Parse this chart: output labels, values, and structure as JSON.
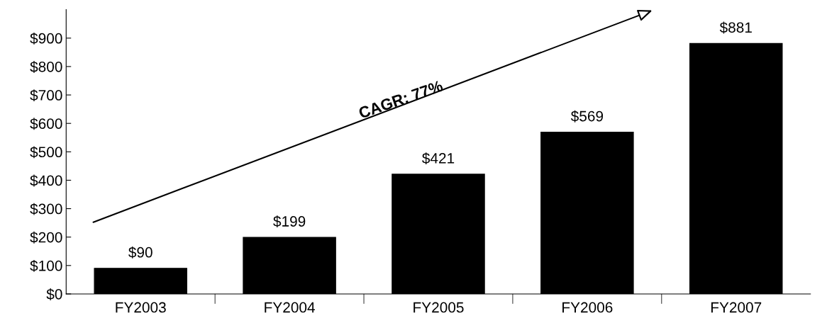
{
  "chart_data": {
    "type": "bar",
    "categories": [
      "FY2003",
      "FY2004",
      "FY2005",
      "FY2006",
      "FY2007"
    ],
    "values": [
      90,
      199,
      421,
      569,
      881
    ],
    "color": "#000000",
    "value_labels": [
      "$90",
      "$199",
      "$421",
      "$569",
      "$881"
    ],
    "ylim": [
      0,
      1000
    ],
    "yticks": [
      {
        "value": 0,
        "label": "$0"
      },
      {
        "value": 100,
        "label": "$100"
      },
      {
        "value": 200,
        "label": "$200"
      },
      {
        "value": 300,
        "label": "$300"
      },
      {
        "value": 400,
        "label": "$400"
      },
      {
        "value": 500,
        "label": "$500"
      },
      {
        "value": 600,
        "label": "$600"
      },
      {
        "value": 700,
        "label": "$700"
      },
      {
        "value": 800,
        "label": "$800"
      },
      {
        "value": 900,
        "label": "$900"
      }
    ],
    "annotations": [
      "CAGR: 77%"
    ],
    "grid": false,
    "legend": false
  }
}
